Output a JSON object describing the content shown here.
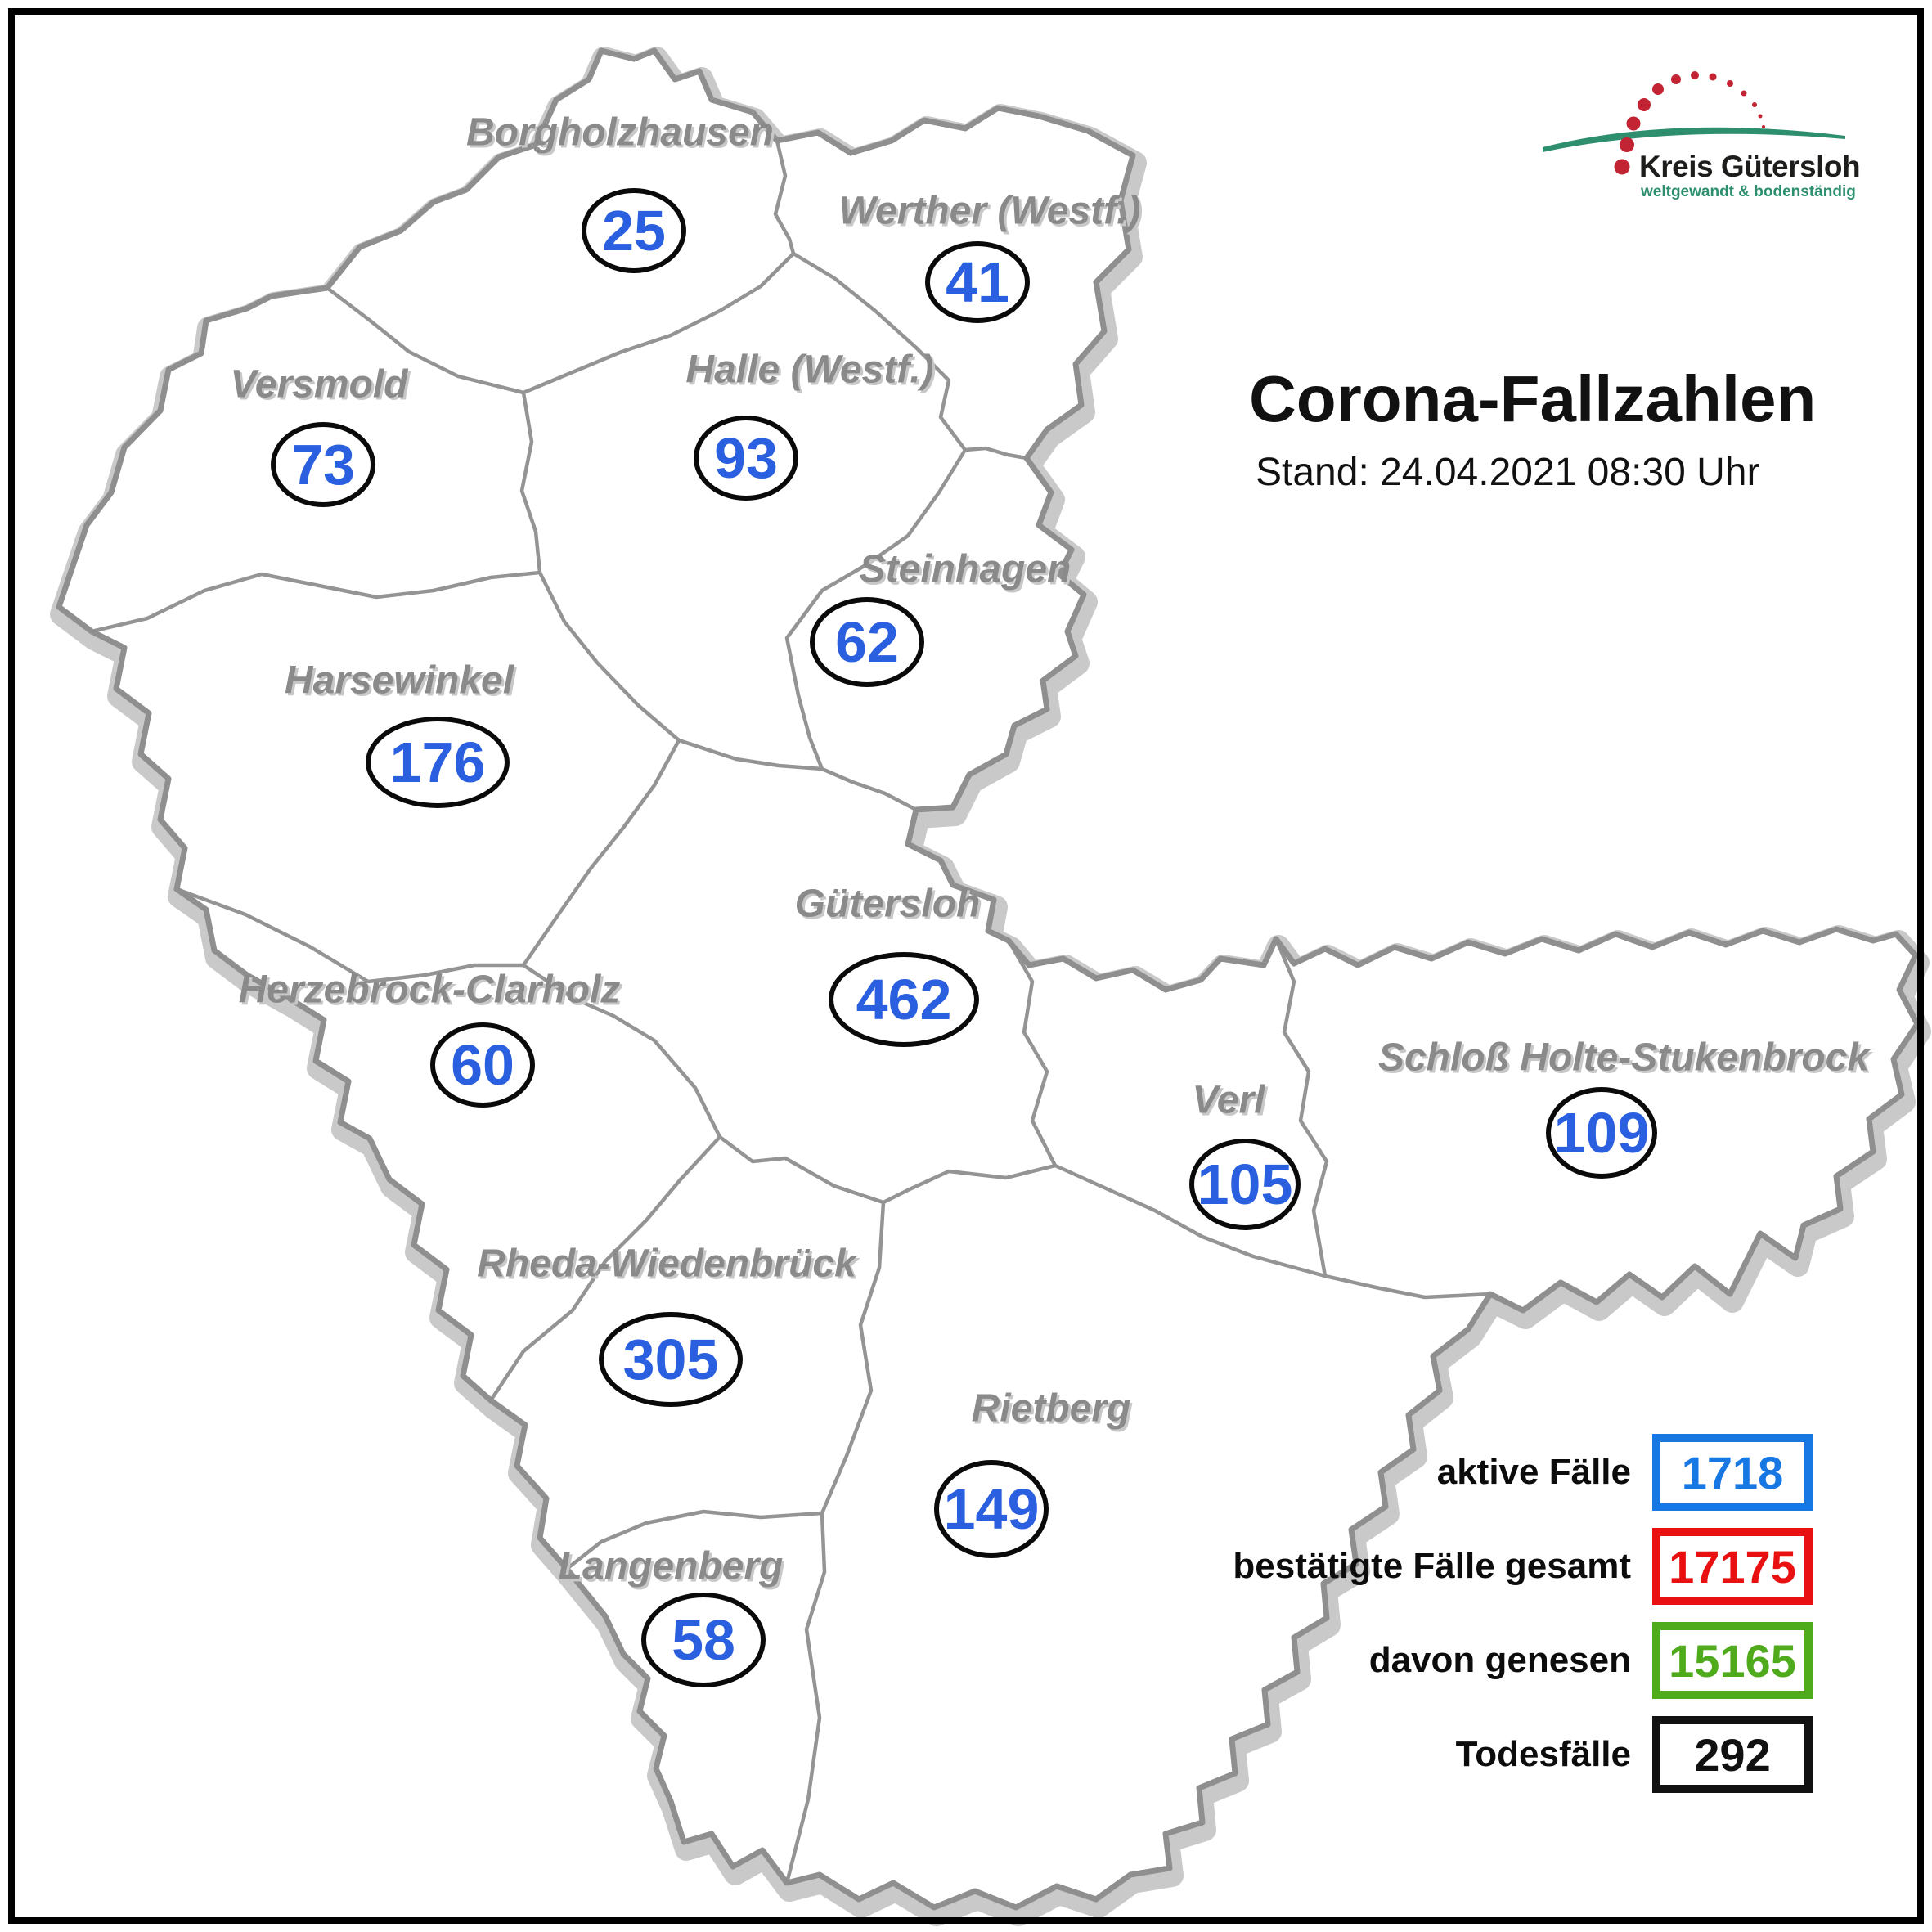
{
  "header": {
    "title": "Corona-Fallzahlen",
    "subtitle": "Stand: 24.04.2021 08:30 Uhr"
  },
  "logo": {
    "name": "Kreis Gütersloh",
    "tagline": "weltgewandt & bodenständig"
  },
  "map": {
    "municipalities": [
      {
        "name": "Borgholzhausen",
        "cases": 25
      },
      {
        "name": "Werther (Westf.)",
        "cases": 41
      },
      {
        "name": "Versmold",
        "cases": 73
      },
      {
        "name": "Halle (Westf.)",
        "cases": 93
      },
      {
        "name": "Steinhagen",
        "cases": 62
      },
      {
        "name": "Harsewinkel",
        "cases": 176
      },
      {
        "name": "Gütersloh",
        "cases": 462
      },
      {
        "name": "Herzebrock-Clarholz",
        "cases": 60
      },
      {
        "name": "Verl",
        "cases": 105
      },
      {
        "name": "Schloß Holte-Stukenbrock",
        "cases": 109
      },
      {
        "name": "Rheda-Wiedenbrück",
        "cases": 305
      },
      {
        "name": "Rietberg",
        "cases": 149
      },
      {
        "name": "Langenberg",
        "cases": 58
      }
    ]
  },
  "legend": {
    "items": [
      {
        "label": "aktive Fälle",
        "value": 1718,
        "color": "#1777e3"
      },
      {
        "label": "bestätigte Fälle gesamt",
        "value": 17175,
        "color": "#e81010"
      },
      {
        "label": "davon genesen",
        "value": 15165,
        "color": "#4faa1c"
      },
      {
        "label": "Todesfälle",
        "value": 292,
        "color": "#111111"
      }
    ]
  },
  "colors": {
    "case-blue": "#2a5fdf",
    "label-gray": "#8a8a8a",
    "logo-green": "#2e8f6e",
    "logo-red": "#c32433"
  }
}
